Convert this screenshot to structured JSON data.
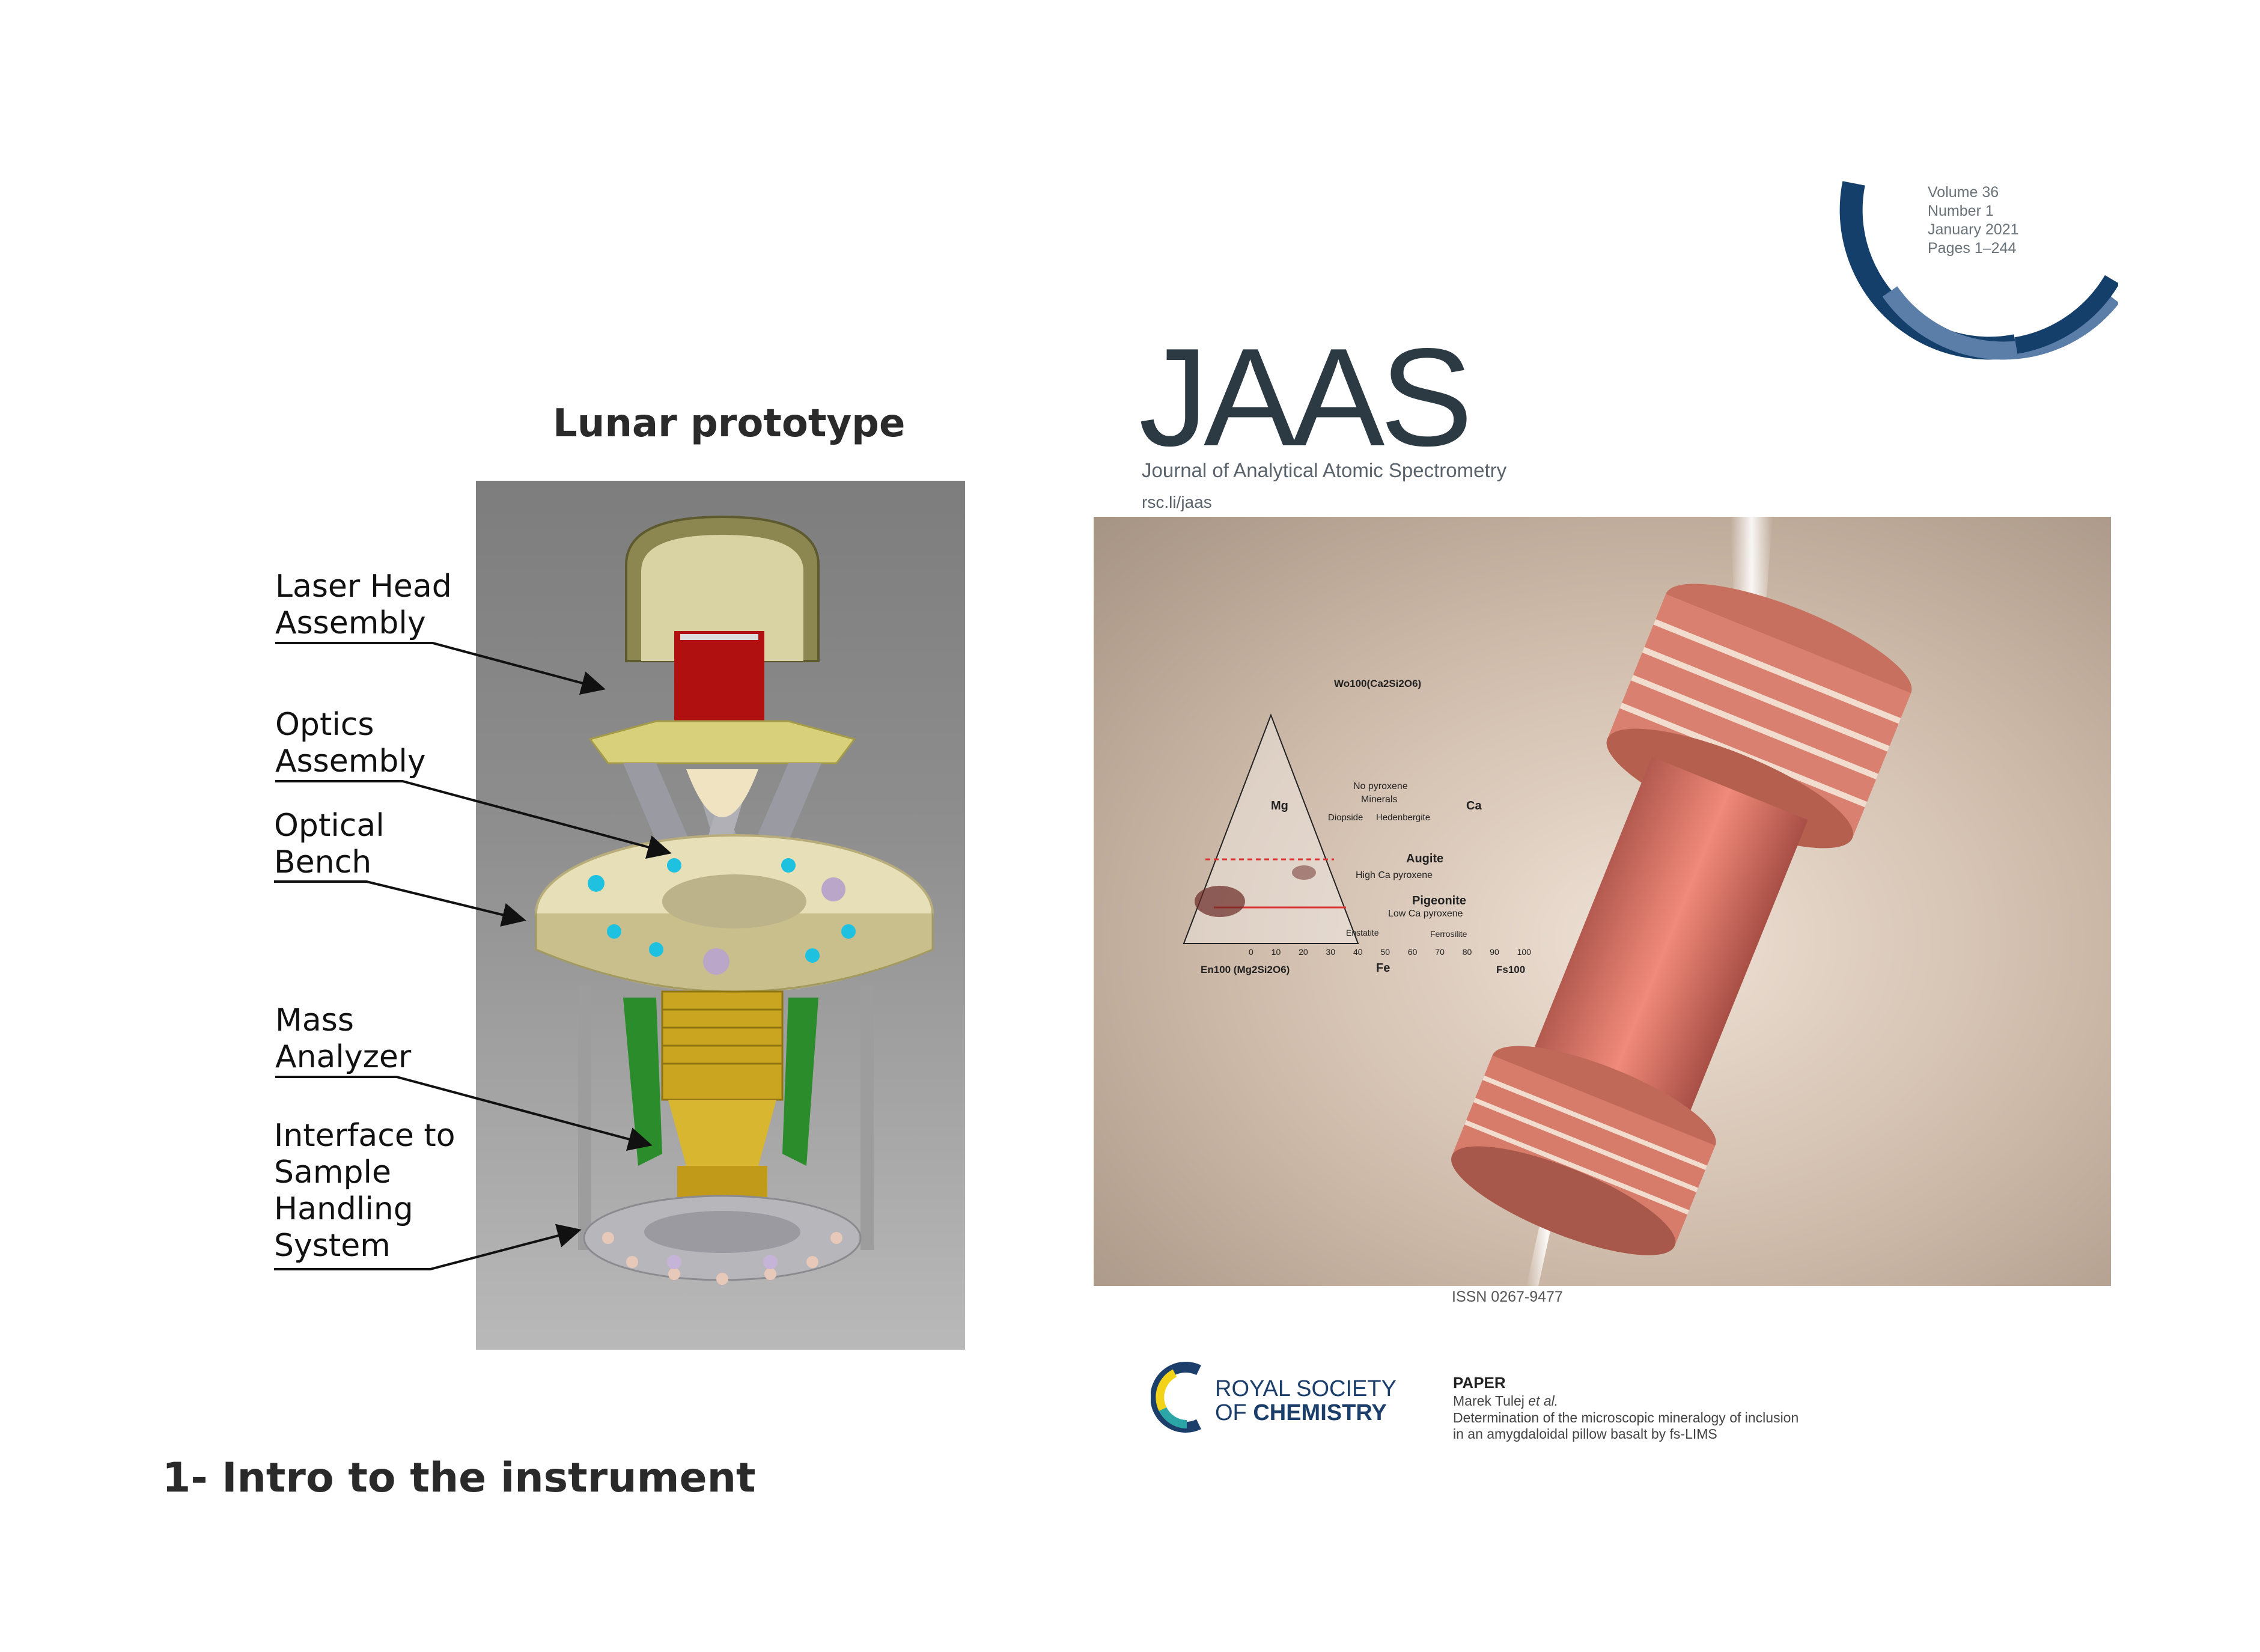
{
  "figure": {
    "title": "Lunar prototype",
    "labels": [
      {
        "line1": "Laser Head",
        "line2": "Assembly"
      },
      {
        "line1": "Optics",
        "line2": "Assembly"
      },
      {
        "line1": "Optical",
        "line2": "Bench"
      },
      {
        "line1": "Mass",
        "line2": "Analyzer"
      }
    ],
    "interface_label": [
      "Interface to",
      "Sample",
      "Handling",
      "System"
    ]
  },
  "footer": {
    "title": "1- Intro to the instrument"
  },
  "journal": {
    "name": "JAAS",
    "subtitle": "Journal of Analytical Atomic Spectrometry",
    "url": "rsc.li/jaas",
    "volume": "Volume 36",
    "number": "Number 1",
    "date": "January 2021",
    "pages": "Pages 1–244",
    "issn": "ISSN 0267-9477",
    "publisher_line1": "ROYAL SOCIETY",
    "publisher_line2a": "OF ",
    "publisher_line2b": "CHEMISTRY",
    "paper_heading": "PAPER",
    "paper_author": "Marek Tulej ",
    "paper_author_etal": "et al.",
    "paper_title_1": "Determination of the microscopic mineralogy of inclusion",
    "paper_title_2": "in an amygdaloidal pillow basalt by fs-LIMS",
    "colors": {
      "navy": "#143f6b",
      "steel": "#5b7ea8",
      "text_dark": "#2c3a44"
    }
  },
  "ternary": {
    "top_label": "Wo100(Ca2Si2O6)",
    "left_corner": "En100 (Mg2Si2O6)",
    "right_corner": "Fs100",
    "left_side": "Mg",
    "right_side": "Ca",
    "bottom_side": "Fe",
    "fields": [
      "No pyroxene",
      "Minerals",
      "Diopside",
      "Hedenbergite",
      "Augite",
      "High Ca pyroxene",
      "Pigeonite",
      "Low Ca pyroxene",
      "Enstatite",
      "Ferrosilite"
    ],
    "ticks": [
      "0",
      "10",
      "20",
      "30",
      "40",
      "50",
      "60",
      "70",
      "80",
      "90",
      "100"
    ]
  }
}
